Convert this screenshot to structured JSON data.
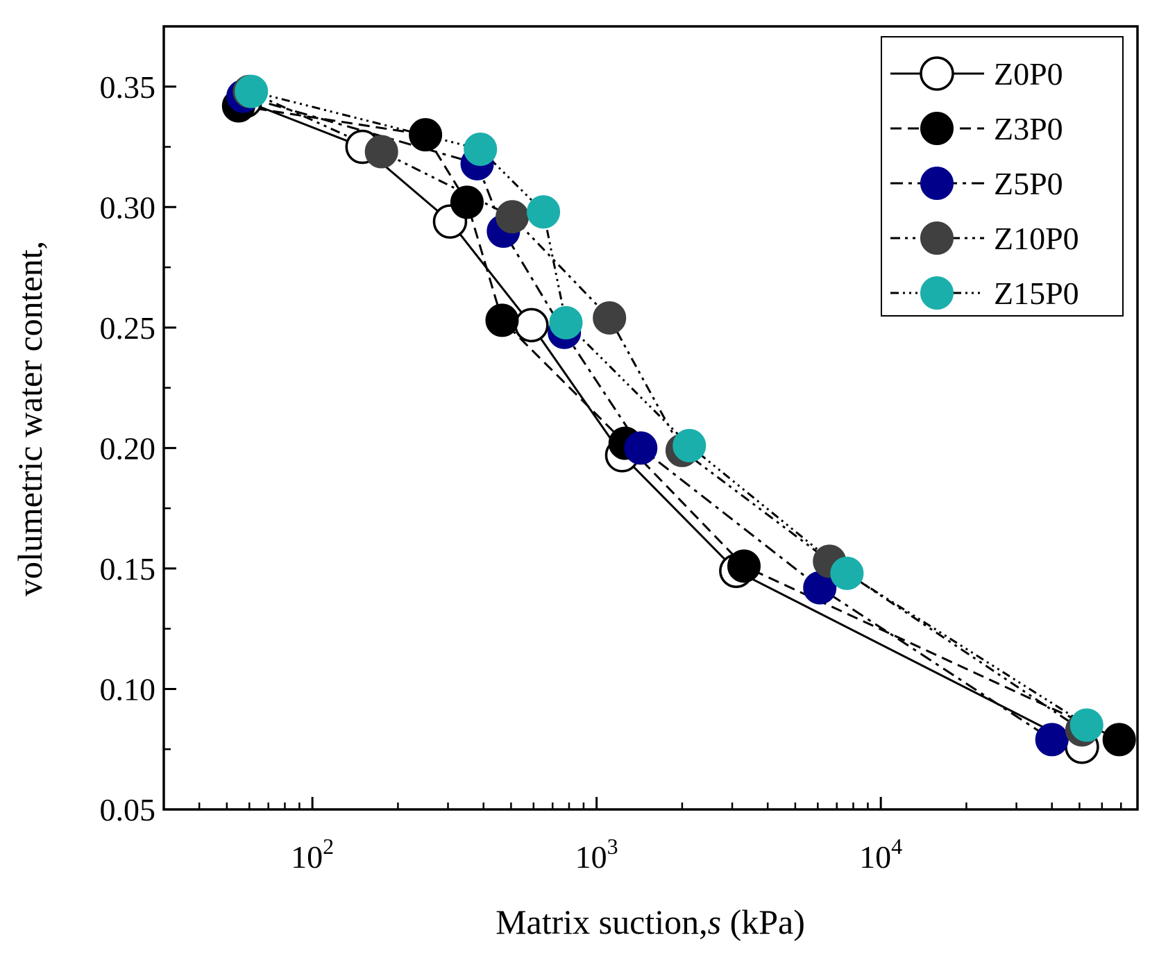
{
  "chart_data": {
    "type": "line",
    "title": "",
    "xlabel": "Matrix suction,",
    "xlabel_var": "s",
    "xlabel_unit": " (kPa)",
    "ylabel": "volumetric water content,",
    "xscale": "log",
    "xlim": [
      30,
      80000
    ],
    "ylim": [
      0.05,
      0.375
    ],
    "x_major_ticks": [
      100,
      1000,
      10000
    ],
    "x_tick_labels": [
      {
        "base": "10",
        "exp": "2"
      },
      {
        "base": "10",
        "exp": "3"
      },
      {
        "base": "10",
        "exp": "4"
      }
    ],
    "y_major_ticks": [
      0.05,
      0.1,
      0.15,
      0.2,
      0.25,
      0.3,
      0.35
    ],
    "y_tick_labels": [
      "0.05",
      "0.10",
      "0.15",
      "0.20",
      "0.25",
      "0.30",
      "0.35"
    ],
    "legend_position": "top-right",
    "series": [
      {
        "name": "Z0P0",
        "marker_fill": "#ffffff",
        "marker_edge": "#000000",
        "line_style": "solid",
        "x": [
          58,
          150,
          305,
          590,
          1230,
          3100,
          51000
        ],
        "y": [
          0.344,
          0.325,
          0.294,
          0.251,
          0.197,
          0.149,
          0.076
        ]
      },
      {
        "name": "Z3P0",
        "marker_fill": "#000000",
        "marker_edge": "#000000",
        "line_style": "dash",
        "x": [
          55,
          250,
          350,
          465,
          1260,
          3300,
          69000
        ],
        "y": [
          0.342,
          0.33,
          0.302,
          0.253,
          0.202,
          0.151,
          0.079
        ]
      },
      {
        "name": "Z5P0",
        "marker_fill": "#00008b",
        "marker_edge": "#00008b",
        "line_style": "dashdot",
        "x": [
          57,
          380,
          470,
          770,
          1430,
          6100,
          40000
        ],
        "y": [
          0.346,
          0.318,
          0.29,
          0.248,
          0.2,
          0.142,
          0.079
        ]
      },
      {
        "name": "Z10P0",
        "marker_fill": "#404040",
        "marker_edge": "#404040",
        "line_style": "dashdotdot",
        "x": [
          60,
          175,
          505,
          1110,
          2000,
          6600,
          51000
        ],
        "y": [
          0.348,
          0.323,
          0.296,
          0.254,
          0.199,
          0.153,
          0.083
        ]
      },
      {
        "name": "Z15P0",
        "marker_fill": "#1bafac",
        "marker_edge": "#1bafac",
        "line_style": "dashdotdotdot",
        "x": [
          61,
          390,
          650,
          780,
          2120,
          7600,
          53000
        ],
        "y": [
          0.348,
          0.324,
          0.298,
          0.252,
          0.201,
          0.148,
          0.085
        ]
      }
    ]
  }
}
